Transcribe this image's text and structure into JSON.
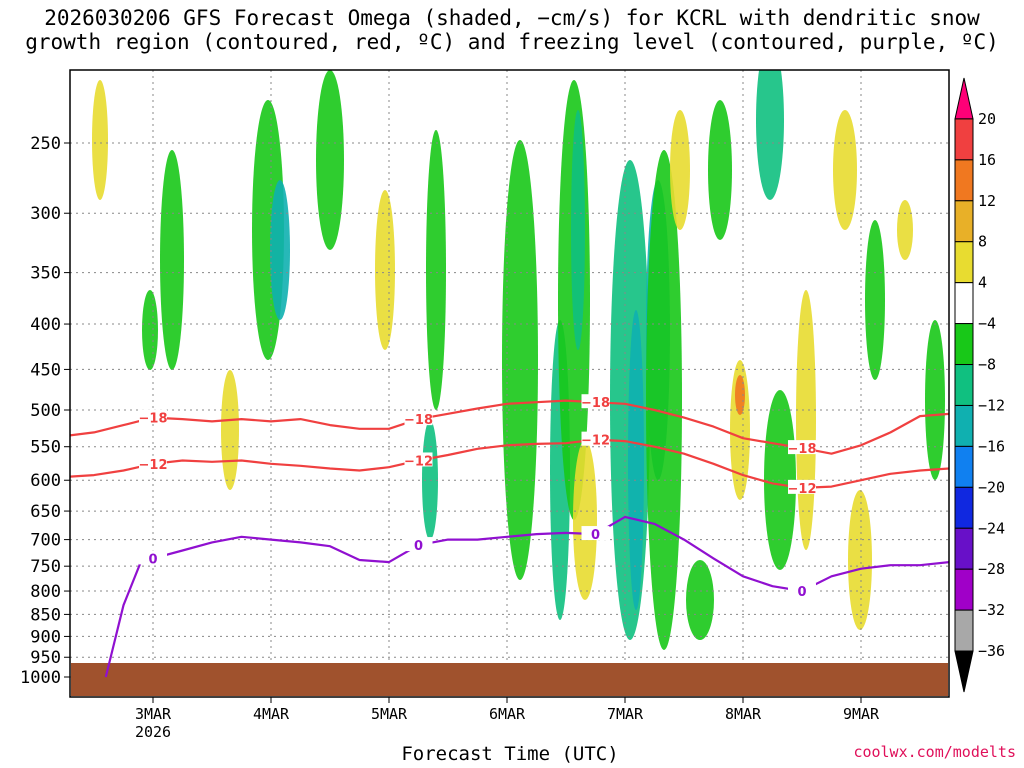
{
  "title": "2026030206 GFS Forecast Omega (shaded, −cm/s) for KCRL with dendritic snow\ngrowth region (contoured, red, ºC) and freezing level (contoured, purple, ºC)",
  "credit": "coolwx.com/modelts",
  "chart_data": {
    "type": "heatmap",
    "title": "2026030206 GFS Forecast Omega (shaded, −cm/s) for KCRL with dendritic snow growth region (contoured, red, ºC) and freezing level (contoured, purple, ºC)",
    "xlabel": "Forecast Time (UTC)",
    "ylabel": "",
    "x_ticks": [
      {
        "label": "3MAR",
        "sub": "2026",
        "day": 3
      },
      {
        "label": "4MAR",
        "sub": "",
        "day": 4
      },
      {
        "label": "5MAR",
        "sub": "",
        "day": 5
      },
      {
        "label": "6MAR",
        "sub": "",
        "day": 6
      },
      {
        "label": "7MAR",
        "sub": "",
        "day": 7
      },
      {
        "label": "8MAR",
        "sub": "",
        "day": 8
      },
      {
        "label": "9MAR",
        "sub": "",
        "day": 9
      }
    ],
    "xlim_days": [
      2.25,
      9.75
    ],
    "y_ticks": [
      250,
      300,
      350,
      400,
      450,
      500,
      550,
      600,
      650,
      700,
      750,
      800,
      850,
      900,
      950,
      1000
    ],
    "ylim_hpa": [
      1025,
      200
    ],
    "grid": true,
    "colorbar": {
      "labels": [
        "20",
        "16",
        "12",
        "8",
        "4",
        "−4",
        "−8",
        "−12",
        "−16",
        "−20",
        "−24",
        "−28",
        "−32",
        "−36"
      ],
      "colors": [
        "#ff0077",
        "#f04040",
        "#f07820",
        "#e8b028",
        "#e8dc30",
        "#ffffff",
        "#18c818",
        "#10c080",
        "#10b0b0",
        "#1080f0",
        "#1028e0",
        "#6810c8",
        "#a000c8",
        "#a8a8a8",
        "#000000"
      ]
    },
    "series": [
      {
        "name": "",
        "role": "dgz-top",
        "color": "#f04040",
        "label": "−18",
        "x": [
          2.25,
          2.5,
          2.75,
          3.0,
          3.25,
          3.5,
          3.75,
          4.0,
          4.25,
          4.5,
          4.75,
          5.0,
          5.25,
          5.5,
          5.75,
          6.0,
          6.25,
          6.5,
          6.75,
          7.0,
          7.25,
          7.5,
          7.75,
          8.0,
          8.25,
          8.5,
          8.75,
          9.0,
          9.25,
          9.5,
          9.75
        ],
        "y": [
          535,
          530,
          520,
          510,
          512,
          515,
          512,
          515,
          512,
          520,
          525,
          525,
          512,
          505,
          498,
          492,
          490,
          488,
          490,
          492,
          500,
          510,
          522,
          538,
          545,
          552,
          560,
          548,
          530,
          508,
          505
        ]
      },
      {
        "name": "",
        "role": "dgz-bottom",
        "color": "#f04040",
        "label": "−12",
        "x": [
          2.25,
          2.5,
          2.75,
          3.0,
          3.25,
          3.5,
          3.75,
          4.0,
          4.25,
          4.5,
          4.75,
          5.0,
          5.25,
          5.5,
          5.75,
          6.0,
          6.25,
          6.5,
          6.75,
          7.0,
          7.25,
          7.5,
          7.75,
          8.0,
          8.25,
          8.5,
          8.75,
          9.0,
          9.25,
          9.5,
          9.75
        ],
        "y": [
          595,
          592,
          585,
          575,
          570,
          572,
          570,
          575,
          578,
          582,
          585,
          580,
          570,
          562,
          553,
          548,
          546,
          545,
          540,
          542,
          550,
          560,
          575,
          592,
          605,
          612,
          610,
          600,
          590,
          585,
          582
        ]
      },
      {
        "name": "",
        "role": "freezing-level",
        "color": "#9010d0",
        "label": "0",
        "x": [
          2.6,
          2.75,
          2.9,
          3.0,
          3.25,
          3.5,
          3.75,
          4.0,
          4.25,
          4.5,
          4.75,
          5.0,
          5.25,
          5.5,
          5.75,
          6.0,
          6.25,
          6.5,
          6.75,
          7.0,
          7.25,
          7.5,
          7.75,
          8.0,
          8.25,
          8.5,
          8.75,
          9.0,
          9.25,
          9.5,
          9.75
        ],
        "y": [
          1000,
          830,
          740,
          735,
          720,
          705,
          695,
          700,
          705,
          712,
          738,
          742,
          710,
          700,
          700,
          695,
          690,
          688,
          690,
          660,
          672,
          700,
          735,
          770,
          790,
          800,
          770,
          755,
          748,
          748,
          742
        ]
      }
    ],
    "terrain_hpa": 970
  }
}
